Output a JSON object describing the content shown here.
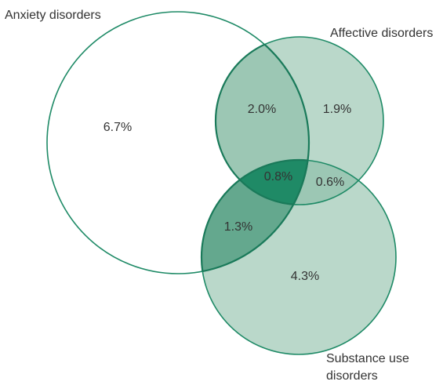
{
  "diagram": {
    "type": "venn",
    "sets": [
      {
        "id": "anxiety",
        "label": "Anxiety disorders"
      },
      {
        "id": "affective",
        "label": "Affective disorders"
      },
      {
        "id": "substance",
        "label": "Substance use disorders",
        "label_lines": [
          "Substance use",
          "disorders"
        ]
      }
    ],
    "regions": [
      {
        "id": "anxiety_only",
        "sets": [
          "anxiety"
        ],
        "value": "6.7%"
      },
      {
        "id": "affective_only",
        "sets": [
          "affective"
        ],
        "value": "1.9%"
      },
      {
        "id": "substance_only",
        "sets": [
          "substance"
        ],
        "value": "4.3%"
      },
      {
        "id": "anxiety_affective",
        "sets": [
          "anxiety",
          "affective"
        ],
        "value": "2.0%"
      },
      {
        "id": "anxiety_substance",
        "sets": [
          "anxiety",
          "substance"
        ],
        "value": "1.3%"
      },
      {
        "id": "affective_substance",
        "sets": [
          "affective",
          "substance"
        ],
        "value": "0.6%"
      },
      {
        "id": "all_three",
        "sets": [
          "anxiety",
          "affective",
          "substance"
        ],
        "value": "0.8%"
      }
    ],
    "colors": {
      "outline": "#1e8a66",
      "anxiety_only": "#ffffff",
      "affective_only": "#bad8ca",
      "substance_only": "#bad8ca",
      "anxiety_affective": "#9cc7b4",
      "affective_substance": "#9cc7b4",
      "anxiety_substance": "#64a88e",
      "all_three": "#1f8a66"
    }
  }
}
